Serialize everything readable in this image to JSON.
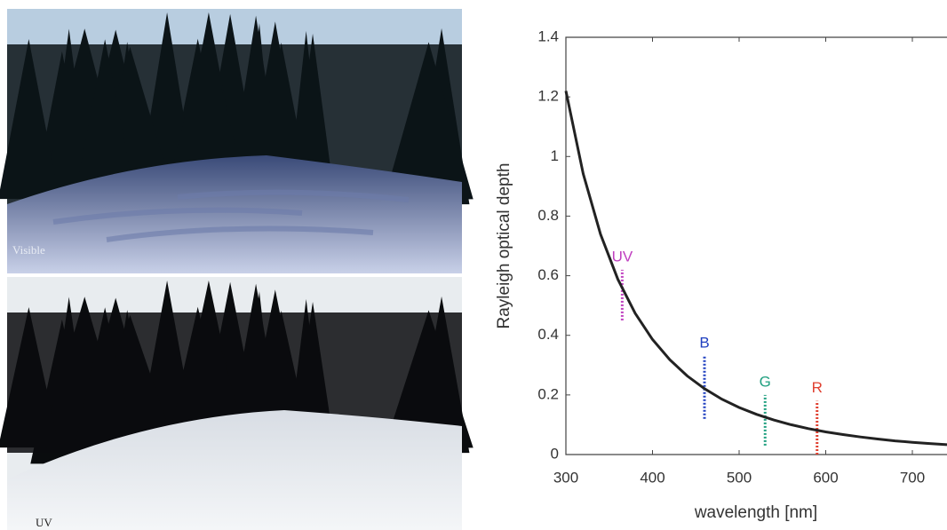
{
  "photos": [
    {
      "label": "Visible"
    },
    {
      "label": "UV"
    }
  ],
  "chart_data": {
    "type": "line",
    "x_label": "wavelength [nm]",
    "y_label": "Rayleigh optical depth",
    "x": [
      300,
      320,
      340,
      360,
      380,
      400,
      420,
      440,
      460,
      480,
      500,
      520,
      540,
      560,
      580,
      600,
      620,
      640,
      660,
      680,
      700,
      720,
      740
    ],
    "values": [
      1.22,
      0.942,
      0.739,
      0.588,
      0.474,
      0.386,
      0.318,
      0.264,
      0.221,
      0.186,
      0.158,
      0.135,
      0.116,
      0.1,
      0.087,
      0.076,
      0.067,
      0.059,
      0.052,
      0.046,
      0.041,
      0.037,
      0.033
    ],
    "color": "#222222",
    "xlim": [
      300,
      740
    ],
    "ylim": [
      0,
      1.4
    ],
    "xticks": [
      300,
      400,
      500,
      600,
      700
    ],
    "yticks": [
      0,
      0.2,
      0.4,
      0.6,
      0.8,
      1,
      1.2,
      1.4
    ],
    "bands": [
      {
        "label": "UV",
        "color": "#c040c0",
        "x": 365,
        "range": [
          0.45,
          0.62
        ]
      },
      {
        "label": "B",
        "color": "#2040c0",
        "x": 460,
        "range": [
          0.12,
          0.33
        ]
      },
      {
        "label": "G",
        "color": "#20a080",
        "x": 530,
        "range": [
          0.03,
          0.2
        ]
      },
      {
        "label": "R",
        "color": "#e04030",
        "x": 590,
        "range": [
          0.0,
          0.18
        ]
      }
    ]
  }
}
